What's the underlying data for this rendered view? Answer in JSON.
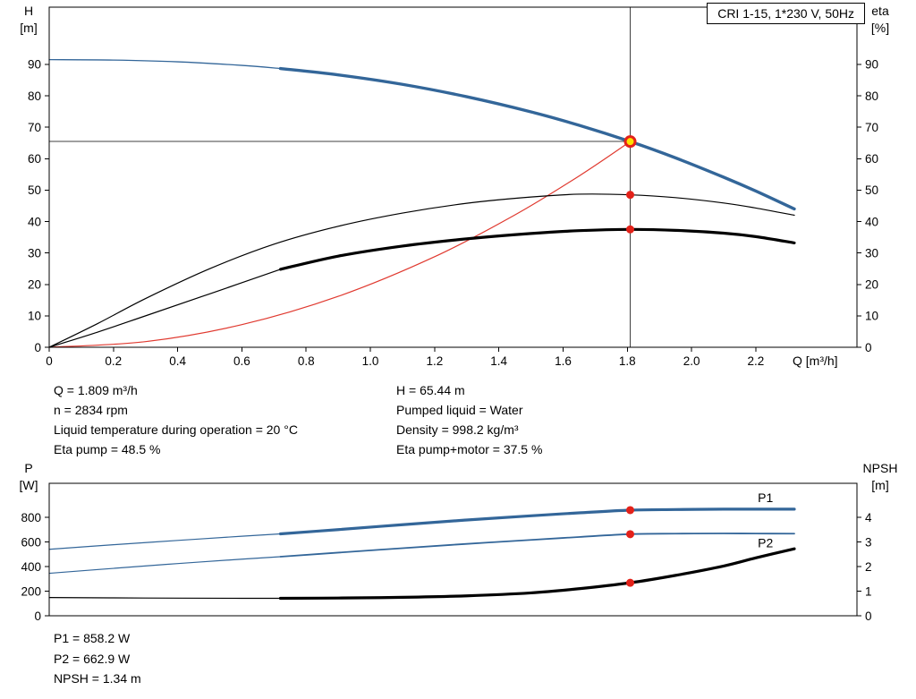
{
  "title_box": "CRI 1-15, 1*230 V, 50Hz",
  "xaxis_title": "Q [m³/h]",
  "axis_corner_labels": {
    "top_left": [
      "H",
      "[m]"
    ],
    "top_right": [
      "eta",
      "[%]"
    ],
    "bottom_left": [
      "P",
      "[W]"
    ],
    "bottom_right": [
      "NPSH",
      "[m]"
    ]
  },
  "info_top": {
    "left": [
      "Q = 1.809 m³/h",
      "n = 2834 rpm",
      "Liquid temperature during operation = 20 °C",
      "Eta pump = 48.5 %"
    ],
    "right": [
      "H = 65.44 m",
      "Pumped liquid = Water",
      "Density = 998.2 kg/m³",
      "Eta pump+motor = 37.5 %"
    ]
  },
  "info_bottom": [
    "P1 = 858.2 W",
    "P2 = 662.9 W",
    "NPSH = 1.34 m"
  ],
  "colors": {
    "curve_blue": "#336699",
    "curve_black": "#000000",
    "system_red": "#e0392f",
    "marker_red": "#e32119",
    "marker_yellow": "#ffe000",
    "ref_line": "#404040"
  },
  "chart_data": [
    {
      "id": "chart-top",
      "type": "line",
      "title": "CRI 1-15, 1*230 V, 50Hz",
      "xlabel": "Q [m³/h]",
      "ylabel_left": "H [m]",
      "ylabel_right": "eta [%]",
      "xlim": [
        0,
        2.515
      ],
      "ylim_left": [
        0,
        108.2
      ],
      "ylim_right": [
        0,
        108.2
      ],
      "grid": false,
      "xticks": {
        "values": [
          0,
          0.2,
          0.4,
          0.6,
          0.8,
          1.0,
          1.2,
          1.4,
          1.6,
          1.8,
          2.0,
          2.2
        ],
        "labels": [
          "0",
          "0.2",
          "0.4",
          "0.6",
          "0.8",
          "1.0",
          "1.2",
          "1.4",
          "1.6",
          "1.8",
          "2.0",
          "2.2"
        ]
      },
      "yticks_left": {
        "values": [
          0,
          10,
          20,
          30,
          40,
          50,
          60,
          70,
          80,
          90
        ],
        "labels": [
          "0",
          "10",
          "20",
          "30",
          "40",
          "50",
          "60",
          "70",
          "80",
          "90"
        ]
      },
      "yticks_right": {
        "values": [
          0,
          10,
          20,
          30,
          40,
          50,
          60,
          70,
          80,
          90
        ],
        "labels": [
          "0",
          "10",
          "20",
          "30",
          "40",
          "50",
          "60",
          "70",
          "80",
          "90"
        ]
      },
      "duty_point": {
        "Q": 1.809,
        "H": 65.44,
        "eta_pump": 48.5,
        "eta_pump_motor": 37.5
      },
      "ref_lines": [
        {
          "name": "duty-flow-line",
          "points": [
            [
              1.809,
              0
            ],
            [
              1.809,
              108.2
            ]
          ],
          "color": "#404040",
          "width": 1
        },
        {
          "name": "duty-head-line",
          "points": [
            [
              0,
              65.44
            ],
            [
              1.809,
              65.44
            ]
          ],
          "color": "#404040",
          "width": 1
        }
      ],
      "series": [
        {
          "name": "system-curve",
          "color": "#e0392f",
          "width": 1.2,
          "points": [
            [
              0,
              0
            ],
            [
              0.3,
              1.8
            ],
            [
              0.6,
              7.2
            ],
            [
              0.9,
              16.2
            ],
            [
              1.2,
              28.8
            ],
            [
              1.45,
              42.1
            ],
            [
              1.65,
              54.5
            ],
            [
              1.809,
              65.44
            ]
          ]
        },
        {
          "name": "eta-pump-curve",
          "color": "#000000",
          "width": 1.2,
          "points": [
            [
              0,
              0
            ],
            [
              0.15,
              7.5
            ],
            [
              0.3,
              15.5
            ],
            [
              0.5,
              25.0
            ],
            [
              0.7,
              32.8
            ],
            [
              0.9,
              38.5
            ],
            [
              1.1,
              42.7
            ],
            [
              1.3,
              45.8
            ],
            [
              1.5,
              47.8
            ],
            [
              1.65,
              48.7
            ],
            [
              1.809,
              48.5
            ],
            [
              1.95,
              47.6
            ],
            [
              2.1,
              45.9
            ],
            [
              2.2,
              44.3
            ],
            [
              2.32,
              42.0
            ]
          ]
        },
        {
          "name": "eta-pump-motor-curve-thin",
          "color": "#000000",
          "width": 1.2,
          "points": [
            [
              0,
              0
            ],
            [
              0.15,
              4.8
            ],
            [
              0.3,
              10.0
            ],
            [
              0.5,
              17.0
            ],
            [
              0.72,
              24.8
            ]
          ]
        },
        {
          "name": "eta-pump-motor-curve",
          "color": "#000000",
          "width": 3.2,
          "points": [
            [
              0.72,
              24.8
            ],
            [
              0.9,
              29.0
            ],
            [
              1.1,
              32.2
            ],
            [
              1.3,
              34.5
            ],
            [
              1.5,
              36.2
            ],
            [
              1.65,
              37.1
            ],
            [
              1.809,
              37.5
            ],
            [
              1.95,
              37.2
            ],
            [
              2.1,
              36.3
            ],
            [
              2.2,
              35.2
            ],
            [
              2.32,
              33.2
            ]
          ]
        },
        {
          "name": "hq-curve-thin",
          "color": "#336699",
          "width": 1.3,
          "points": [
            [
              0,
              91.5
            ],
            [
              0.2,
              91.37
            ],
            [
              0.4,
              90.81
            ],
            [
              0.6,
              89.67
            ],
            [
              0.72,
              88.67
            ]
          ]
        },
        {
          "name": "hq-curve",
          "color": "#336699",
          "width": 3.4,
          "points": [
            [
              0.72,
              88.67
            ],
            [
              0.9,
              86.65
            ],
            [
              1.1,
              83.64
            ],
            [
              1.3,
              79.7
            ],
            [
              1.5,
              74.89
            ],
            [
              1.65,
              70.61
            ],
            [
              1.809,
              65.44
            ],
            [
              1.95,
              60.25
            ],
            [
              2.1,
              54.1
            ],
            [
              2.2,
              49.7
            ],
            [
              2.32,
              44.0
            ]
          ]
        }
      ],
      "markers": [
        {
          "name": "eta-pump-duty-point",
          "x": 1.809,
          "y": 48.5,
          "r": 4.5,
          "fill": "#e32119"
        },
        {
          "name": "eta-pump-motor-duty-point",
          "x": 1.809,
          "y": 37.5,
          "r": 4.5,
          "fill": "#e32119"
        },
        {
          "name": "duty-point-marker",
          "x": 1.809,
          "y": 65.44,
          "r": 5.5,
          "fill": "#ffe000",
          "stroke": "#e32119",
          "sw": 3,
          "interactable": true
        }
      ],
      "labels": []
    },
    {
      "id": "chart-bottom",
      "type": "line",
      "xlabel": "",
      "ylabel_left": "P [W]",
      "ylabel_right": "NPSH [m]",
      "xlim": [
        0,
        2.515
      ],
      "ylim_left": [
        0,
        1076
      ],
      "ylim_right": [
        0,
        5.38
      ],
      "grid": false,
      "xticks": {
        "values": [],
        "labels": []
      },
      "yticks_left": {
        "values": [
          0,
          200,
          400,
          600,
          800
        ],
        "labels": [
          "0",
          "200",
          "400",
          "600",
          "800"
        ]
      },
      "yticks_right": {
        "values": [
          0,
          1,
          2,
          3,
          4
        ],
        "labels": [
          "0",
          "1",
          "2",
          "3",
          "4"
        ]
      },
      "duty_point": {
        "Q": 1.809,
        "P1": 858.2,
        "P2": 662.9,
        "NPSH": 1.34
      },
      "ref_lines": [],
      "series": [
        {
          "name": "npsh-curve-thin",
          "color": "#000000",
          "width": 1.2,
          "axis": "right",
          "points": [
            [
              0,
              0.74
            ],
            [
              0.3,
              0.72
            ],
            [
              0.6,
              0.71
            ],
            [
              0.72,
              0.71
            ]
          ]
        },
        {
          "name": "npsh-curve",
          "color": "#000000",
          "width": 3.2,
          "axis": "right",
          "points": [
            [
              0.72,
              0.71
            ],
            [
              0.9,
              0.72
            ],
            [
              1.1,
              0.75
            ],
            [
              1.3,
              0.81
            ],
            [
              1.5,
              0.93
            ],
            [
              1.65,
              1.1
            ],
            [
              1.809,
              1.34
            ],
            [
              1.95,
              1.64
            ],
            [
              2.1,
              2.02
            ],
            [
              2.2,
              2.35
            ],
            [
              2.32,
              2.72
            ]
          ]
        },
        {
          "name": "p2-curve-thin",
          "color": "#336699",
          "width": 1.2,
          "points": [
            [
              0,
              345
            ],
            [
              0.2,
              385
            ],
            [
              0.4,
              424
            ],
            [
              0.6,
              460
            ],
            [
              0.72,
              480
            ]
          ]
        },
        {
          "name": "p2-curve",
          "color": "#336699",
          "width": 1.8,
          "points": [
            [
              0.72,
              480
            ],
            [
              0.9,
              513
            ],
            [
              1.1,
              549
            ],
            [
              1.3,
              584
            ],
            [
              1.5,
              616
            ],
            [
              1.65,
              640
            ],
            [
              1.809,
              663
            ],
            [
              1.95,
              667
            ],
            [
              2.1,
              669
            ],
            [
              2.2,
              668
            ],
            [
              2.32,
              667
            ]
          ]
        },
        {
          "name": "p1-curve-thin",
          "color": "#336699",
          "width": 1.2,
          "points": [
            [
              0,
              540
            ],
            [
              0.2,
              577
            ],
            [
              0.4,
              612
            ],
            [
              0.6,
              646
            ],
            [
              0.72,
              665
            ]
          ]
        },
        {
          "name": "p1-curve",
          "color": "#336699",
          "width": 3.2,
          "points": [
            [
              0.72,
              665
            ],
            [
              0.9,
              700
            ],
            [
              1.1,
              740
            ],
            [
              1.3,
              778
            ],
            [
              1.5,
              812
            ],
            [
              1.65,
              836
            ],
            [
              1.809,
              858
            ],
            [
              1.95,
              863
            ],
            [
              2.1,
              866
            ],
            [
              2.2,
              866
            ],
            [
              2.32,
              866
            ]
          ]
        }
      ],
      "markers": [
        {
          "name": "p1-duty-point",
          "x": 1.809,
          "y": 858.2,
          "r": 4.5,
          "fill": "#e32119"
        },
        {
          "name": "p2-duty-point",
          "x": 1.809,
          "y": 662.9,
          "r": 4.5,
          "fill": "#e32119"
        },
        {
          "name": "npsh-duty-point",
          "x": 1.809,
          "y": 1.34,
          "axis": "right",
          "r": 4.5,
          "fill": "#e32119"
        }
      ],
      "labels": [
        {
          "name": "p1-label",
          "text": "P1",
          "x": 2.23,
          "y": 923,
          "color": "#336699"
        },
        {
          "name": "p2-label",
          "text": "P2",
          "x": 2.23,
          "y": 555,
          "color": "#336699"
        }
      ]
    }
  ]
}
